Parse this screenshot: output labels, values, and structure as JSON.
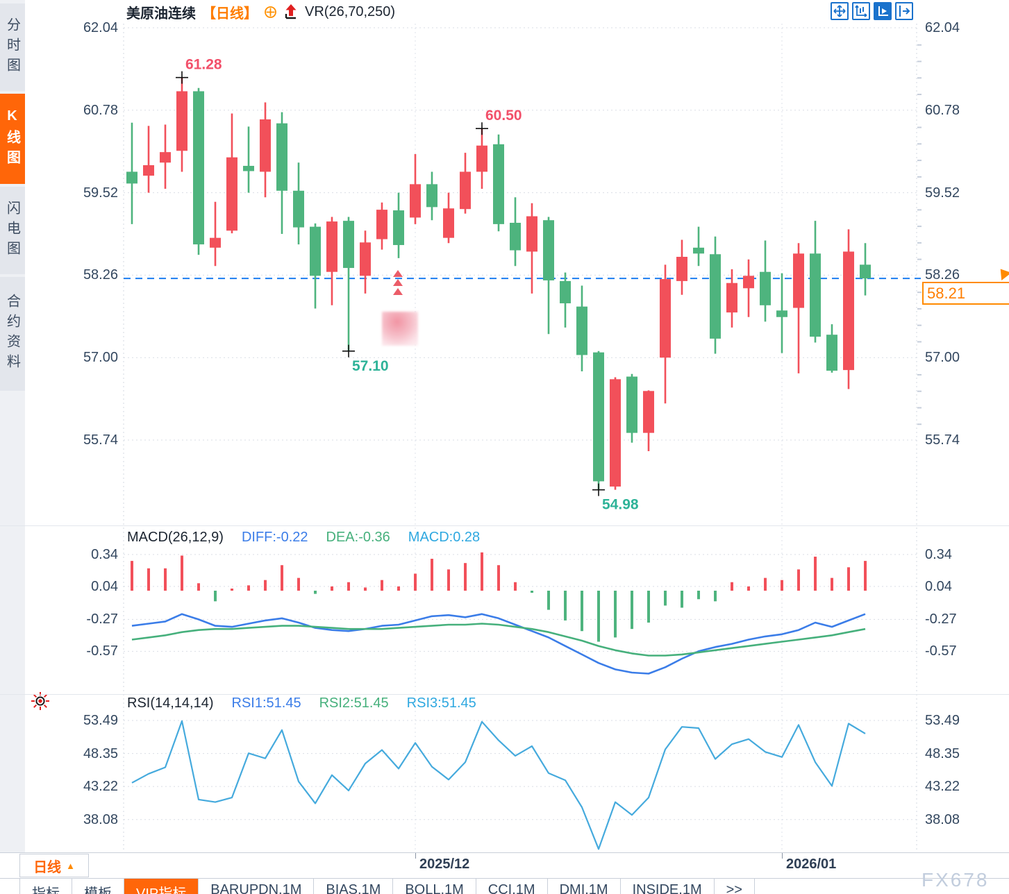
{
  "app": {
    "watermark": "FX678"
  },
  "sidebar": {
    "tabs": [
      {
        "label": "分时图",
        "active": false
      },
      {
        "label": "K线图",
        "active": true
      },
      {
        "label": "闪电图",
        "active": false
      },
      {
        "label": "合约资料",
        "active": false
      }
    ]
  },
  "header": {
    "symbol": "美原油连续",
    "period": "【日线】",
    "indicator": "VR(26,70,250)",
    "icons": [
      "target-plus-icon",
      "signal-arrow-up-icon"
    ]
  },
  "toolbar": {
    "icons": [
      "pan-icon",
      "zoom-axis-icon",
      "scale-axis-icon",
      "collapse-right-icon"
    ],
    "active_icon": "scale-axis-icon"
  },
  "last_price": {
    "value": "58.21"
  },
  "colors": {
    "up": "#f2505a",
    "down": "#4eb47e",
    "accent_orange": "#ff6609",
    "price_line": "#1c7df0",
    "diff_blue": "#3b7de8",
    "dea_green": "#46b07c",
    "macd_cyan": "#2fa8e0",
    "rsi_line": "#45aadd",
    "annotation_red": "#f2506a",
    "annotation_green": "#2eb398",
    "grid": "#d9dde5"
  },
  "chart_data": [
    {
      "type": "candlestick",
      "title": "美原油连续 日线",
      "overlay_indicator": "VR(26,70,250)",
      "y_ticks": [
        "62.04",
        "60.78",
        "59.52",
        "58.26",
        "57.00",
        "55.74"
      ],
      "ylim": [
        55.74,
        62.04
      ],
      "x_labels": [
        {
          "label": "2025/12",
          "index": 17
        },
        {
          "label": "2026/01",
          "index": 39
        }
      ],
      "last_price": 58.21,
      "annotations": [
        {
          "text": "61.28",
          "index": 3,
          "at": "high",
          "color": "red"
        },
        {
          "text": "60.50",
          "index": 21,
          "at": "high",
          "color": "red"
        },
        {
          "text": "57.10",
          "index": 13,
          "at": "low",
          "color": "green"
        },
        {
          "text": "54.98",
          "index": 28,
          "at": "low",
          "color": "green"
        }
      ],
      "candles": [
        [
          59.84,
          60.59,
          59.04,
          59.66
        ],
        [
          59.78,
          60.54,
          59.52,
          59.94
        ],
        [
          59.98,
          60.56,
          59.58,
          60.14
        ],
        [
          60.16,
          61.28,
          59.84,
          61.07
        ],
        [
          61.07,
          61.12,
          58.57,
          58.73
        ],
        [
          58.68,
          59.38,
          58.4,
          58.83
        ],
        [
          58.94,
          60.73,
          58.9,
          60.06
        ],
        [
          59.93,
          60.53,
          59.52,
          59.85
        ],
        [
          59.84,
          60.9,
          59.45,
          60.64
        ],
        [
          60.58,
          60.75,
          58.89,
          59.55
        ],
        [
          59.55,
          59.98,
          58.73,
          58.99
        ],
        [
          59.0,
          59.05,
          57.75,
          58.25
        ],
        [
          58.31,
          59.15,
          57.8,
          59.08
        ],
        [
          59.09,
          59.15,
          57.1,
          58.37
        ],
        [
          58.25,
          58.94,
          57.98,
          58.76
        ],
        [
          58.81,
          59.37,
          58.65,
          59.26
        ],
        [
          59.25,
          59.52,
          58.52,
          58.72
        ],
        [
          59.14,
          60.11,
          59.04,
          59.65
        ],
        [
          59.65,
          59.84,
          59.1,
          59.3
        ],
        [
          58.83,
          59.52,
          58.75,
          59.28
        ],
        [
          59.27,
          60.13,
          59.2,
          59.84
        ],
        [
          59.84,
          60.5,
          59.58,
          60.24
        ],
        [
          60.26,
          60.41,
          58.93,
          59.04
        ],
        [
          59.06,
          59.45,
          58.4,
          58.64
        ],
        [
          58.62,
          59.36,
          57.98,
          59.16
        ],
        [
          59.1,
          59.15,
          57.36,
          58.18
        ],
        [
          58.17,
          58.3,
          57.46,
          57.83
        ],
        [
          57.78,
          58.1,
          56.79,
          57.04
        ],
        [
          57.08,
          57.1,
          54.98,
          55.11
        ],
        [
          55.03,
          56.7,
          54.98,
          56.67
        ],
        [
          56.71,
          56.75,
          55.7,
          55.85
        ],
        [
          55.85,
          56.5,
          55.57,
          56.49
        ],
        [
          57.0,
          58.42,
          56.3,
          58.2
        ],
        [
          58.17,
          58.8,
          57.96,
          58.54
        ],
        [
          58.68,
          59.0,
          58.4,
          58.59
        ],
        [
          58.58,
          58.85,
          57.06,
          57.29
        ],
        [
          57.69,
          58.35,
          57.46,
          58.14
        ],
        [
          58.06,
          58.5,
          57.62,
          58.25
        ],
        [
          58.31,
          58.79,
          57.55,
          57.8
        ],
        [
          57.72,
          58.29,
          57.07,
          57.62
        ],
        [
          57.76,
          58.75,
          56.76,
          58.59
        ],
        [
          58.59,
          59.09,
          57.23,
          57.32
        ],
        [
          57.35,
          57.51,
          56.77,
          56.8
        ],
        [
          56.81,
          58.96,
          56.52,
          58.62
        ],
        [
          58.42,
          58.75,
          57.95,
          58.21
        ]
      ]
    },
    {
      "type": "bar",
      "name": "MACD(26,12,9)",
      "labels": {
        "name": "MACD(26,12,9)",
        "diff": "DIFF:-0.22",
        "dea": "DEA:-0.36",
        "macd": "MACD:0.28"
      },
      "y_ticks": [
        "0.34",
        "0.04",
        "-0.27",
        "-0.57"
      ],
      "histogram": [
        0.28,
        0.21,
        0.21,
        0.33,
        0.07,
        -0.1,
        0.02,
        0.05,
        0.1,
        0.24,
        0.12,
        -0.03,
        0.04,
        0.08,
        0.03,
        0.1,
        0.04,
        0.16,
        0.3,
        0.2,
        0.26,
        0.36,
        0.24,
        0.08,
        -0.02,
        -0.18,
        -0.28,
        -0.38,
        -0.48,
        -0.44,
        -0.36,
        -0.3,
        -0.14,
        -0.16,
        -0.08,
        -0.1,
        0.08,
        0.04,
        0.12,
        0.1,
        0.2,
        0.32,
        0.12,
        0.22,
        0.28
      ],
      "series": [
        {
          "name": "DIFF",
          "values": [
            -0.33,
            -0.31,
            -0.29,
            -0.22,
            -0.27,
            -0.33,
            -0.34,
            -0.31,
            -0.28,
            -0.26,
            -0.3,
            -0.35,
            -0.37,
            -0.38,
            -0.36,
            -0.33,
            -0.32,
            -0.28,
            -0.24,
            -0.23,
            -0.25,
            -0.22,
            -0.26,
            -0.32,
            -0.38,
            -0.44,
            -0.52,
            -0.6,
            -0.68,
            -0.74,
            -0.77,
            -0.78,
            -0.72,
            -0.64,
            -0.57,
            -0.53,
            -0.5,
            -0.46,
            -0.43,
            -0.41,
            -0.37,
            -0.3,
            -0.34,
            -0.28,
            -0.22
          ]
        },
        {
          "name": "DEA",
          "values": [
            -0.46,
            -0.44,
            -0.42,
            -0.39,
            -0.37,
            -0.36,
            -0.36,
            -0.35,
            -0.34,
            -0.33,
            -0.33,
            -0.34,
            -0.35,
            -0.36,
            -0.36,
            -0.36,
            -0.35,
            -0.34,
            -0.33,
            -0.32,
            -0.32,
            -0.31,
            -0.32,
            -0.34,
            -0.36,
            -0.39,
            -0.43,
            -0.47,
            -0.52,
            -0.56,
            -0.59,
            -0.61,
            -0.61,
            -0.6,
            -0.58,
            -0.56,
            -0.54,
            -0.52,
            -0.5,
            -0.48,
            -0.46,
            -0.44,
            -0.42,
            -0.39,
            -0.36
          ]
        }
      ]
    },
    {
      "type": "line",
      "name": "RSI(14,14,14)",
      "labels": {
        "name": "RSI(14,14,14)",
        "rsi1": "RSI1:51.45",
        "rsi2": "RSI2:51.45",
        "rsi3": "RSI3:51.45"
      },
      "y_ticks": [
        "53.49",
        "48.35",
        "43.22",
        "38.08"
      ],
      "series": [
        {
          "name": "RSI1",
          "values": [
            43.8,
            45.2,
            46.2,
            53.4,
            41.2,
            40.8,
            41.5,
            48.4,
            47.6,
            52.0,
            44.0,
            40.6,
            45.0,
            42.6,
            46.8,
            48.9,
            46.0,
            50.0,
            46.3,
            44.3,
            47.0,
            53.3,
            50.4,
            48.0,
            49.5,
            45.3,
            44.2,
            40.0,
            33.5,
            40.8,
            38.8,
            41.5,
            49.0,
            52.5,
            52.3,
            47.5,
            49.8,
            50.6,
            48.6,
            47.8,
            52.8,
            47.0,
            43.3,
            53.0,
            51.45
          ]
        }
      ]
    }
  ],
  "footer": {
    "period_button": {
      "label": "日线",
      "caret": "▲"
    },
    "tabs": [
      {
        "label": "指标",
        "active": false
      },
      {
        "label": "模板",
        "active": false
      },
      {
        "label": "VIP指标",
        "active": true
      },
      {
        "label": "BARUPDN.1M",
        "active": false
      },
      {
        "label": "BIAS.1M",
        "active": false
      },
      {
        "label": "BOLL.1M",
        "active": false
      },
      {
        "label": "CCI.1M",
        "active": false
      },
      {
        "label": "DMI.1M",
        "active": false
      },
      {
        "label": "INSIDE.1M",
        "active": false
      },
      {
        "label": ">>",
        "active": false
      }
    ]
  }
}
